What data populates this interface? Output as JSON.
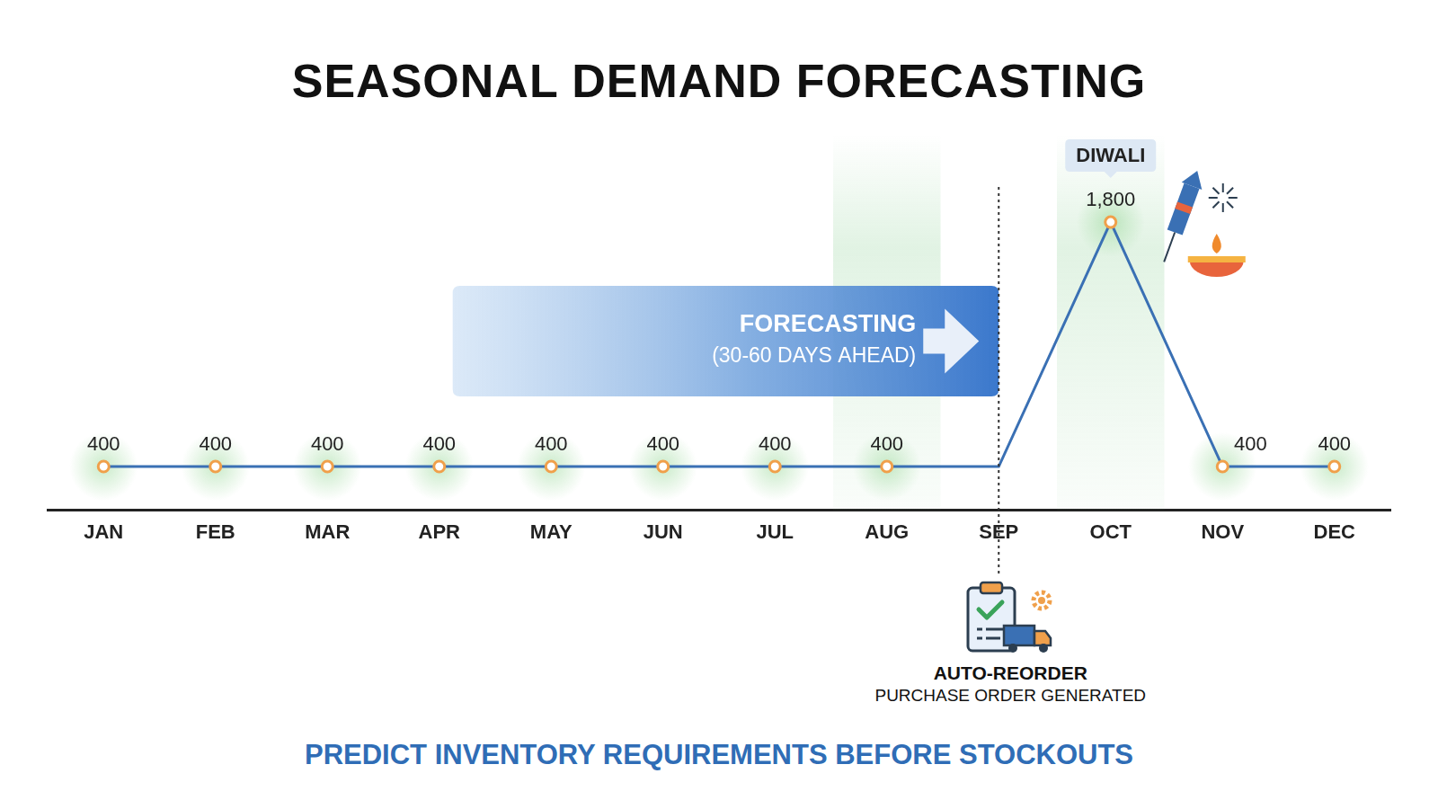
{
  "chart_data": {
    "type": "line",
    "title": "SEASONAL DEMAND FORECASTING",
    "categories": [
      "JAN",
      "FEB",
      "MAR",
      "APR",
      "MAY",
      "JUN",
      "JUL",
      "AUG",
      "SEP",
      "OCT",
      "NOV",
      "DEC"
    ],
    "values": [
      400,
      400,
      400,
      400,
      400,
      400,
      400,
      400,
      400,
      1800,
      400,
      400
    ],
    "value_labels": [
      "400",
      "400",
      "400",
      "400",
      "400",
      "400",
      "400",
      "400",
      null,
      "1,800",
      "400",
      "400"
    ],
    "data_labels": true,
    "color": "#3a70b4",
    "marker": "circle",
    "ylim": [
      150,
      2300
    ],
    "tick_labels": "x",
    "grid": false,
    "annotations": [
      {
        "text": "DIWALI",
        "category": "OCT"
      },
      {
        "text": "FORECASTING",
        "detail": "(30-60 DAYS AHEAD)",
        "until": "SEP"
      },
      {
        "text": "AUTO-REORDER",
        "detail": "PURCHASE ORDER GENERATED",
        "category": "SEP"
      }
    ],
    "footer": "PREDICT INVENTORY REQUIREMENTS BEFORE STOCKOUTS"
  }
}
